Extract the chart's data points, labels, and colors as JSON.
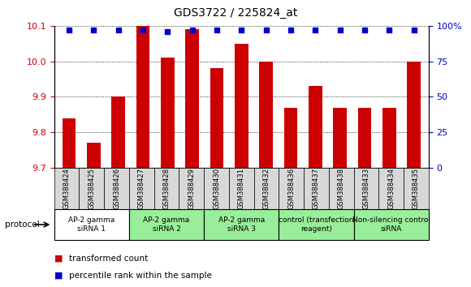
{
  "title": "GDS3722 / 225824_at",
  "samples": [
    "GSM388424",
    "GSM388425",
    "GSM388426",
    "GSM388427",
    "GSM388428",
    "GSM388429",
    "GSM388430",
    "GSM388431",
    "GSM388432",
    "GSM388436",
    "GSM388437",
    "GSM388438",
    "GSM388433",
    "GSM388434",
    "GSM388435"
  ],
  "transformed_counts": [
    9.84,
    9.77,
    9.9,
    10.1,
    10.01,
    10.09,
    9.98,
    10.05,
    10.0,
    9.87,
    9.93,
    9.87,
    9.87,
    9.87,
    10.0
  ],
  "percentile_ranks": [
    97,
    97,
    97,
    97,
    96,
    97,
    97,
    97,
    97,
    97,
    97,
    97,
    97,
    97,
    97
  ],
  "ylim_left": [
    9.7,
    10.1
  ],
  "ylim_right": [
    0,
    100
  ],
  "yticks_left": [
    9.7,
    9.8,
    9.9,
    10.0,
    10.1
  ],
  "yticks_right": [
    0,
    25,
    50,
    75,
    100
  ],
  "bar_color": "#cc0000",
  "dot_color": "#0000cc",
  "groups": [
    {
      "label": "AP-2 gamma\nsiRNA 1",
      "indices": [
        0,
        1,
        2
      ],
      "color": "#ffffff"
    },
    {
      "label": "AP-2 gamma\nsiRNA 2",
      "indices": [
        3,
        4,
        5
      ],
      "color": "#99ee99"
    },
    {
      "label": "AP-2 gamma\nsiRNA 3",
      "indices": [
        6,
        7,
        8
      ],
      "color": "#99ee99"
    },
    {
      "label": "control (transfection\nreagent)",
      "indices": [
        9,
        10,
        11
      ],
      "color": "#99ee99"
    },
    {
      "label": "Non-silencing control\nsiRNA",
      "indices": [
        12,
        13,
        14
      ],
      "color": "#99ee99"
    }
  ],
  "protocol_label": "protocol",
  "bg_color": "#f0f0f0"
}
